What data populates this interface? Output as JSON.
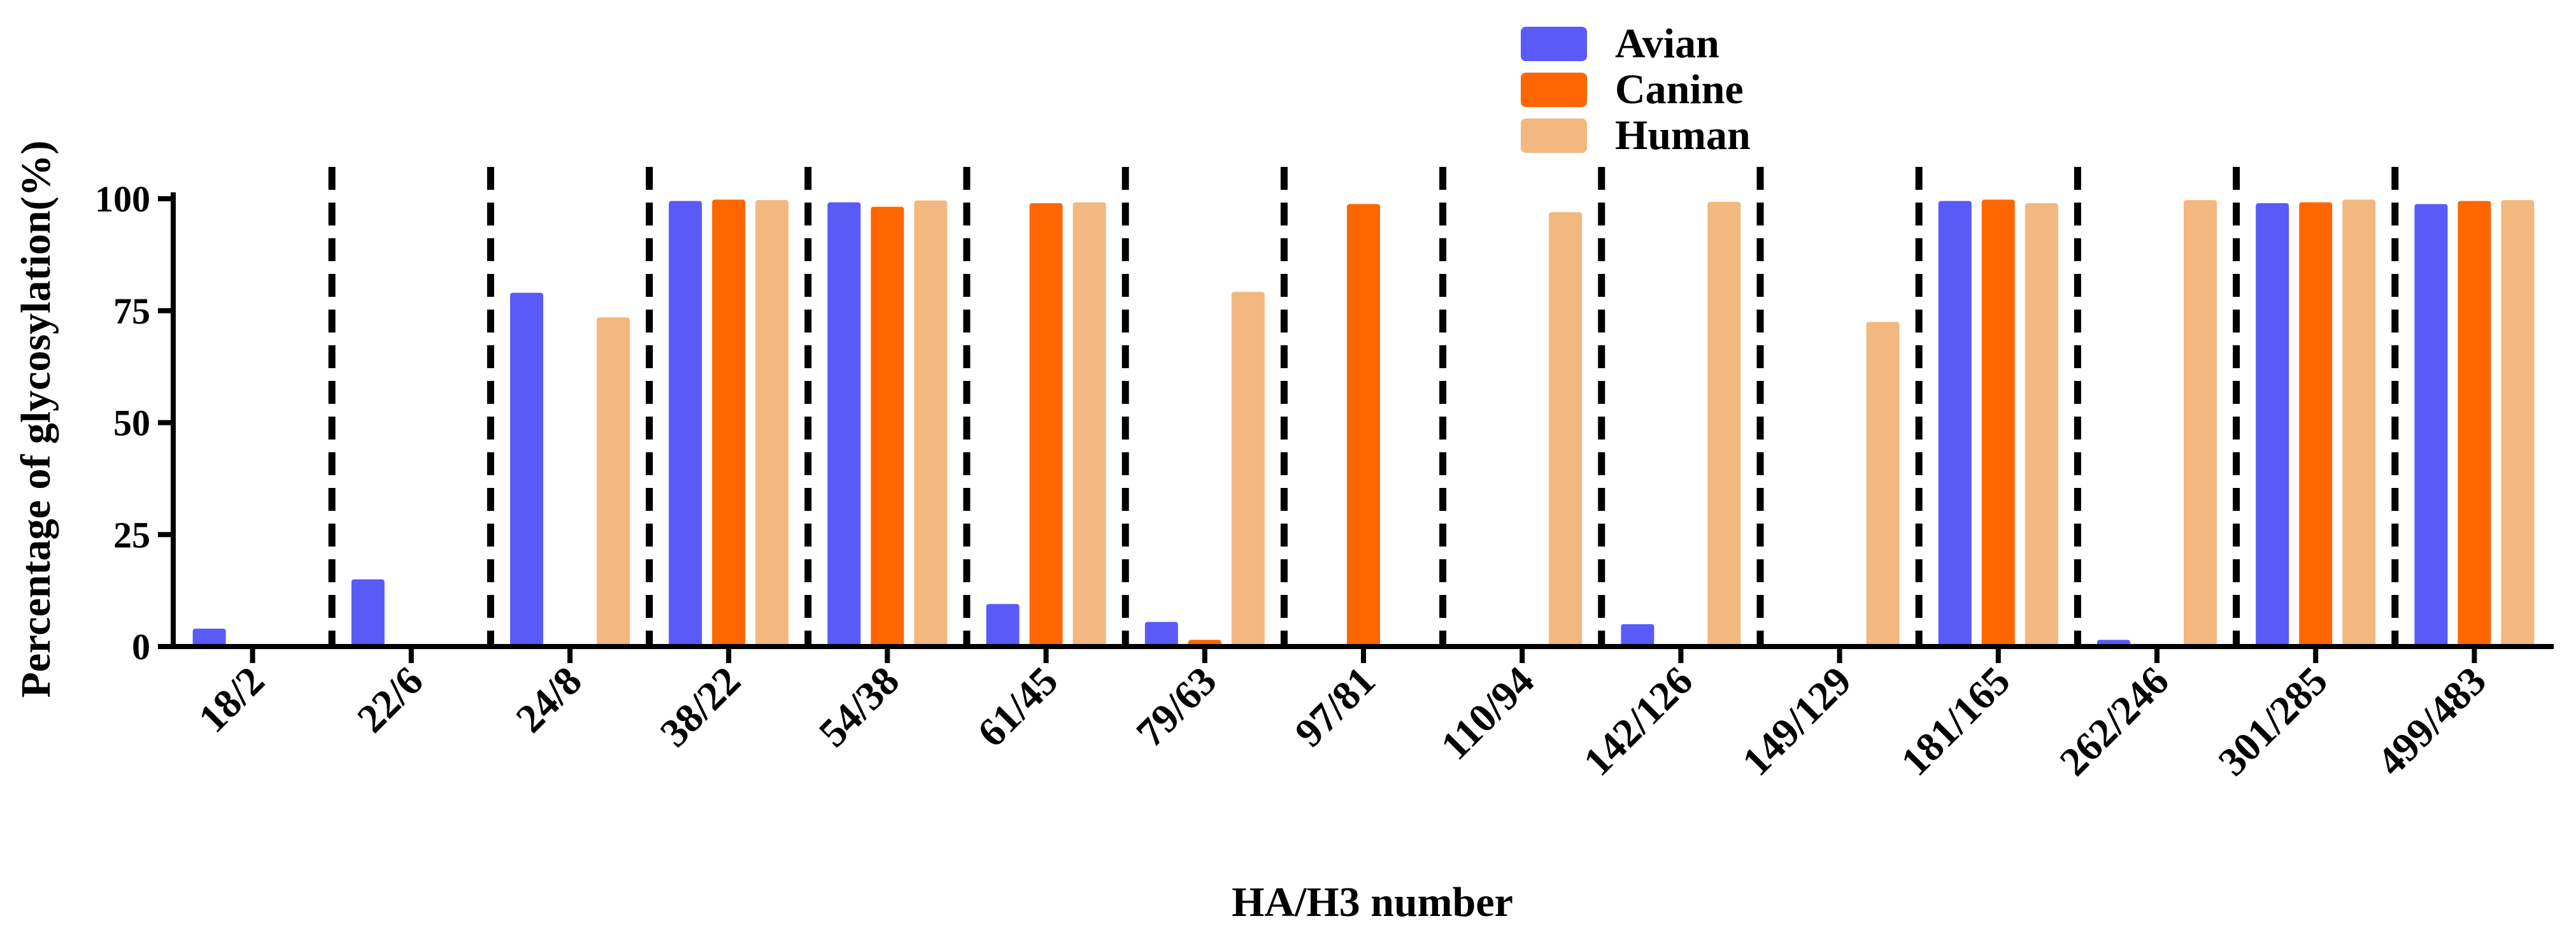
{
  "chart_data": {
    "type": "bar",
    "title": "",
    "xlabel": "HA/H3 number",
    "ylabel": "Percentage of glycosylation(%)",
    "ylim": [
      0,
      100
    ],
    "yticks": [
      0,
      25,
      50,
      75,
      100
    ],
    "yticks_labels": [
      "0",
      "25",
      "50",
      "75",
      "100"
    ],
    "grid": false,
    "legend_position": "top-center",
    "categories": [
      "18/2",
      "22/6",
      "24/8",
      "38/22",
      "54/38",
      "61/45",
      "79/63",
      "97/81",
      "110/94",
      "142/126",
      "149/129",
      "181/165",
      "262/246",
      "301/285",
      "499/483"
    ],
    "series": [
      {
        "name": "Avian",
        "color": "#5a5af7",
        "values": [
          4,
          15,
          79,
          99.5,
          99.2,
          9.5,
          5.5,
          0,
          0,
          5,
          0,
          99.5,
          1.5,
          99,
          98.8
        ]
      },
      {
        "name": "Canine",
        "color": "#ff6600",
        "values": [
          0,
          0,
          0,
          99.8,
          98.2,
          99,
          1.5,
          98.8,
          0,
          0,
          0,
          99.8,
          0,
          99.2,
          99.5
        ]
      },
      {
        "name": "Human",
        "color": "#f2b880",
        "values": [
          0,
          0,
          73.5,
          99.7,
          99.6,
          99.2,
          79.2,
          0,
          97,
          99.3,
          72.5,
          99,
          99.7,
          99.8,
          99.7
        ]
      }
    ]
  }
}
